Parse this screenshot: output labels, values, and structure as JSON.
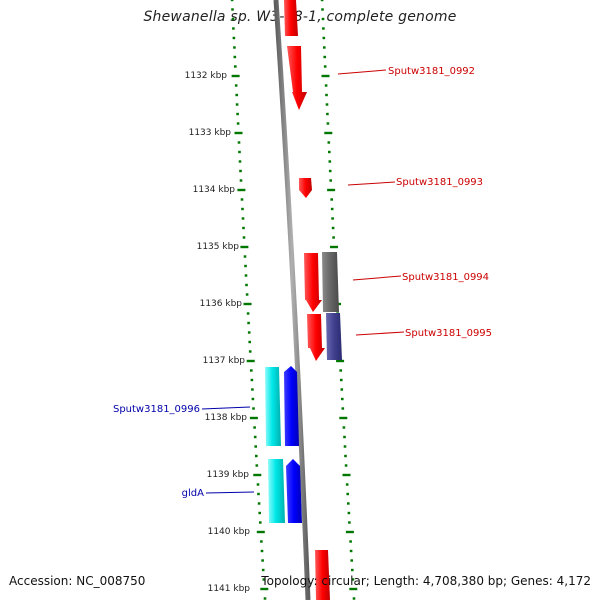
{
  "title": "Shewanella sp. W3-18-1, complete genome",
  "footer": {
    "accession": "Accession: NC_008750",
    "summary": "Topology: circular; Length: 4,708,380 bp; Genes: 4,172"
  },
  "tick_labels": [
    "1132 kbp",
    "1133 kbp",
    "1134 kbp",
    "1135 kbp",
    "1136 kbp",
    "1137 kbp",
    "1138 kbp",
    "1139 kbp",
    "1140 kbp",
    "1141 kbp"
  ],
  "gene_labels": [
    {
      "text": "Sputw3181_0992",
      "color": "#cc0000"
    },
    {
      "text": "Sputw3181_0993",
      "color": "#cc0000"
    },
    {
      "text": "Sputw3181_0994",
      "color": "#cc0000"
    },
    {
      "text": "Sputw3181_0995",
      "color": "#cc0000"
    },
    {
      "text": "Sputw3181_0996",
      "color": "#0000aa"
    },
    {
      "text": "gldA",
      "color": "#0000aa"
    }
  ],
  "colors": {
    "forward_cds": "#ff0000",
    "reverse_cds": "#0000ff",
    "forward_rna": "#666666",
    "forward_other": "#3f3f8f",
    "reverse_other": "#00e0e0",
    "ticks": "#007700",
    "backbone": "#8a8a8a"
  }
}
